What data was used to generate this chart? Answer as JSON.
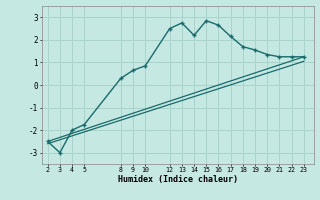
{
  "xlabel": "Humidex (Indice chaleur)",
  "bg_color": "#c5e8e3",
  "grid_color": "#a8d4cc",
  "line_color": "#1a6b6b",
  "x_ticks": [
    2,
    3,
    4,
    5,
    8,
    9,
    10,
    12,
    13,
    14,
    15,
    16,
    17,
    18,
    19,
    20,
    21,
    22,
    23
  ],
  "ylim": [
    -3.5,
    3.5
  ],
  "xlim": [
    1.5,
    23.8
  ],
  "yticks": [
    -3,
    -2,
    -1,
    0,
    1,
    2,
    3
  ],
  "line1_x": [
    2,
    3,
    4,
    5,
    8,
    9,
    10,
    12,
    13,
    14,
    15,
    16,
    17,
    18,
    19,
    20,
    21,
    22,
    23
  ],
  "line1_y": [
    -2.5,
    -3.0,
    -2.0,
    -1.75,
    0.3,
    0.65,
    0.85,
    2.5,
    2.75,
    2.2,
    2.85,
    2.65,
    2.15,
    1.7,
    1.55,
    1.35,
    1.25,
    1.25,
    1.25
  ],
  "line2_x": [
    2,
    23
  ],
  "line2_y": [
    -2.5,
    1.25
  ],
  "line3_x": [
    2,
    23
  ],
  "line3_y": [
    -2.6,
    1.05
  ]
}
